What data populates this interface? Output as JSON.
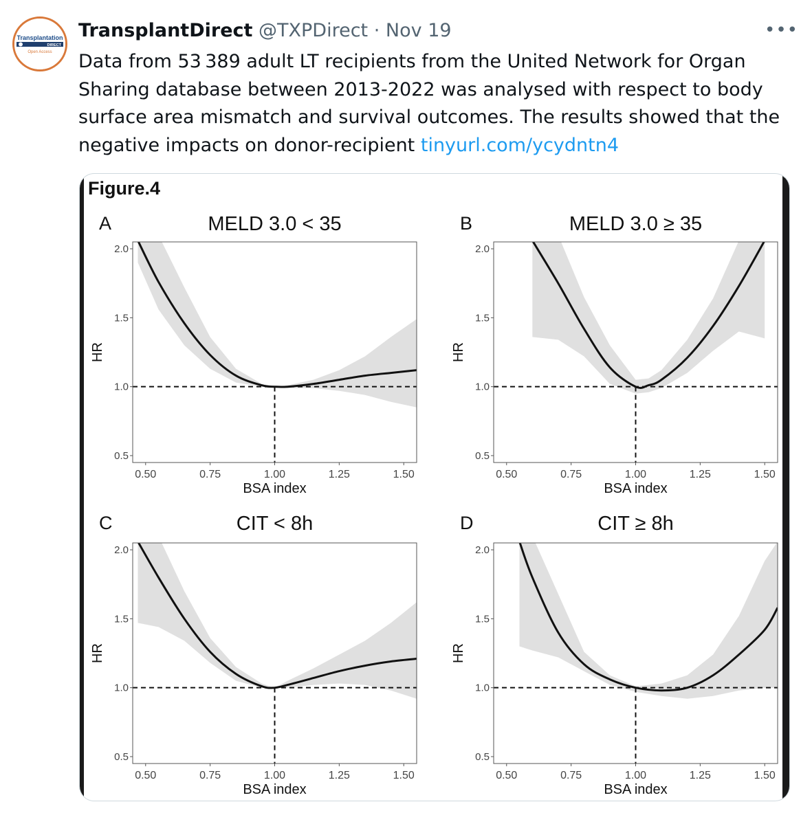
{
  "tweet": {
    "author_name": "TransplantDirect",
    "handle": "@TXPDirect",
    "separator": "·",
    "date": "Nov 19",
    "more_label": "•••",
    "text": "Data from 53 389 adult LT recipients from the United Network for Organ Sharing database between 2013-2022 was analysed with respect to body surface area mismatch and survival outcomes. The results showed that the negative impacts on donor-recipient ",
    "link_text": "tinyurl.com/ycydntn4"
  },
  "avatar": {
    "line1": "Transplantation",
    "line2": "DIRECT",
    "line3": "Open Access",
    "accent": "#d9793a"
  },
  "figure": {
    "title": "Figure.4"
  },
  "chart_data": [
    {
      "type": "line",
      "panel": "A",
      "title": "MELD 3.0 < 35",
      "xlabel": "BSA index",
      "ylabel": "HR",
      "xlim": [
        0.45,
        1.55
      ],
      "ylim": [
        0.45,
        2.05
      ],
      "xticks": [
        "0.50",
        "0.75",
        "1.00",
        "1.25",
        "1.50"
      ],
      "yticks": [
        "0.5",
        "1.0",
        "1.5",
        "2.0"
      ],
      "reference_lines": {
        "y": 1.0,
        "x": 1.0,
        "style": "dashed"
      },
      "series": [
        {
          "x": [
            0.47,
            0.55,
            0.65,
            0.75,
            0.85,
            0.95,
            1.0,
            1.05,
            1.15,
            1.25,
            1.35,
            1.45,
            1.55
          ],
          "y": [
            2.06,
            1.76,
            1.46,
            1.23,
            1.08,
            1.01,
            1.0,
            1.0,
            1.02,
            1.05,
            1.08,
            1.1,
            1.12
          ],
          "lower": [
            1.9,
            1.56,
            1.3,
            1.13,
            1.03,
            1.0,
            1.0,
            0.99,
            0.99,
            0.97,
            0.94,
            0.89,
            0.85
          ],
          "upper": [
            2.1,
            2.1,
            1.72,
            1.36,
            1.13,
            1.02,
            1.0,
            1.01,
            1.05,
            1.12,
            1.22,
            1.36,
            1.49
          ]
        }
      ]
    },
    {
      "type": "line",
      "panel": "B",
      "title": "MELD 3.0 ≥ 35",
      "xlabel": "BSA index",
      "ylabel": "HR",
      "xlim": [
        0.45,
        1.55
      ],
      "ylim": [
        0.45,
        2.05
      ],
      "xticks": [
        "0.50",
        "0.75",
        "1.00",
        "1.25",
        "1.50"
      ],
      "yticks": [
        "0.5",
        "1.0",
        "1.5",
        "2.0"
      ],
      "reference_lines": {
        "y": 1.0,
        "x": 1.0,
        "style": "dashed"
      },
      "series": [
        {
          "x": [
            0.6,
            0.7,
            0.8,
            0.9,
            1.0,
            1.05,
            1.1,
            1.2,
            1.3,
            1.4,
            1.5
          ],
          "y": [
            2.06,
            1.75,
            1.42,
            1.14,
            1.0,
            1.01,
            1.05,
            1.21,
            1.44,
            1.73,
            2.06
          ],
          "lower": [
            1.36,
            1.34,
            1.22,
            1.02,
            0.95,
            0.96,
            0.99,
            1.1,
            1.26,
            1.4,
            1.35
          ],
          "upper": [
            2.1,
            2.1,
            1.65,
            1.3,
            1.05,
            1.06,
            1.12,
            1.34,
            1.64,
            2.06,
            2.1
          ]
        }
      ]
    },
    {
      "type": "line",
      "panel": "C",
      "title": "CIT < 8h",
      "xlabel": "BSA index",
      "ylabel": "HR",
      "xlim": [
        0.45,
        1.55
      ],
      "ylim": [
        0.45,
        2.05
      ],
      "xticks": [
        "0.50",
        "0.75",
        "1.00",
        "1.25",
        "1.50"
      ],
      "yticks": [
        "0.5",
        "1.0",
        "1.5",
        "2.0"
      ],
      "reference_lines": {
        "y": 1.0,
        "x": 1.0,
        "style": "dashed"
      },
      "series": [
        {
          "x": [
            0.47,
            0.55,
            0.65,
            0.75,
            0.85,
            0.95,
            1.0,
            1.05,
            1.15,
            1.25,
            1.35,
            1.45,
            1.55
          ],
          "y": [
            2.06,
            1.8,
            1.5,
            1.26,
            1.1,
            1.01,
            1.0,
            1.02,
            1.07,
            1.12,
            1.16,
            1.19,
            1.21
          ],
          "lower": [
            1.47,
            1.44,
            1.34,
            1.18,
            1.05,
            1.0,
            1.0,
            1.0,
            1.02,
            1.03,
            1.02,
            0.98,
            0.92
          ],
          "upper": [
            2.1,
            2.1,
            1.7,
            1.36,
            1.15,
            1.03,
            1.0,
            1.05,
            1.14,
            1.24,
            1.34,
            1.47,
            1.62
          ]
        }
      ]
    },
    {
      "type": "line",
      "panel": "D",
      "title": "CIT ≥ 8h",
      "xlabel": "BSA index",
      "ylabel": "HR",
      "xlim": [
        0.45,
        1.55
      ],
      "ylim": [
        0.45,
        2.05
      ],
      "xticks": [
        "0.50",
        "0.75",
        "1.00",
        "1.25",
        "1.50"
      ],
      "yticks": [
        "0.5",
        "1.0",
        "1.5",
        "2.0"
      ],
      "reference_lines": {
        "y": 1.0,
        "x": 1.0,
        "style": "dashed"
      },
      "series": [
        {
          "x": [
            0.55,
            0.6,
            0.7,
            0.8,
            0.9,
            1.0,
            1.1,
            1.2,
            1.3,
            1.4,
            1.5,
            1.55
          ],
          "y": [
            2.06,
            1.8,
            1.4,
            1.17,
            1.06,
            1.0,
            0.98,
            1.0,
            1.09,
            1.24,
            1.42,
            1.58
          ],
          "lower": [
            1.3,
            1.27,
            1.22,
            1.12,
            1.02,
            0.97,
            0.94,
            0.92,
            0.94,
            0.98,
            1.0,
            1.0
          ],
          "upper": [
            2.1,
            2.1,
            1.68,
            1.26,
            1.09,
            1.01,
            1.03,
            1.09,
            1.24,
            1.52,
            1.92,
            2.06
          ]
        }
      ]
    }
  ]
}
